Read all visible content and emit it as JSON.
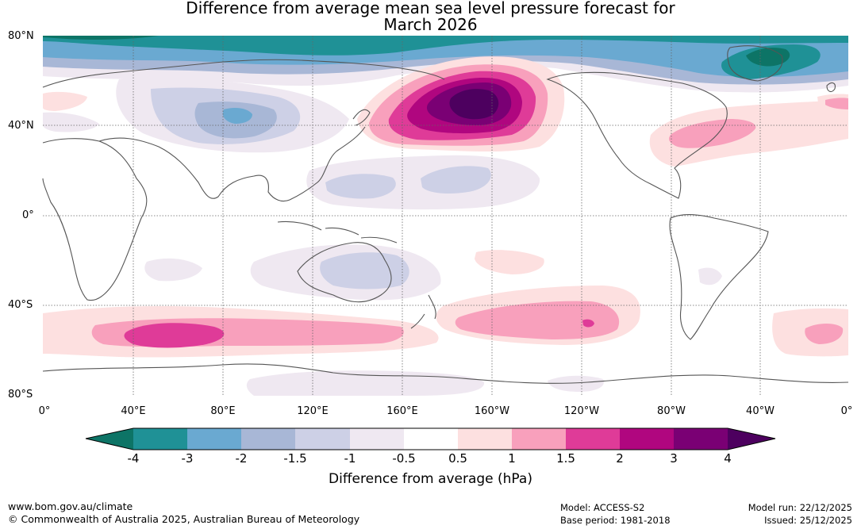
{
  "title": {
    "line1": "Difference from average mean sea level pressure forecast for",
    "line2": "March 2026"
  },
  "map": {
    "lat_labels": [
      "80°N",
      "40°N",
      "0°",
      "40°S",
      "80°S"
    ],
    "lon_labels": [
      "0°",
      "40°E",
      "80°E",
      "120°E",
      "160°E",
      "160°W",
      "120°W",
      "80°W",
      "40°W",
      "0°"
    ]
  },
  "colorbar": {
    "colors": [
      "#0d7466",
      "#1f9196",
      "#6aa9d1",
      "#a8b7d6",
      "#cdd0e6",
      "#efe8f1",
      "#ffffff",
      "#fde0e0",
      "#f8a0bc",
      "#df3b98",
      "#b0067f",
      "#7a0074",
      "#4d005f"
    ],
    "ticks": [
      "-4",
      "-3",
      "-2",
      "-1.5",
      "-1",
      "-0.5",
      "0.5",
      "1",
      "1.5",
      "2",
      "3",
      "4"
    ],
    "title": "Difference from average (hPa)"
  },
  "footer": {
    "url": "www.bom.gov.au/climate",
    "copyright": "© Commonwealth of Australia 2025, Australian Bureau of Meteorology",
    "model": "Model: ACCESS-S2",
    "base_period": "Base period: 1981-2018",
    "model_run": "Model run: 22/12/2025",
    "issued": "Issued: 25/12/2025"
  }
}
